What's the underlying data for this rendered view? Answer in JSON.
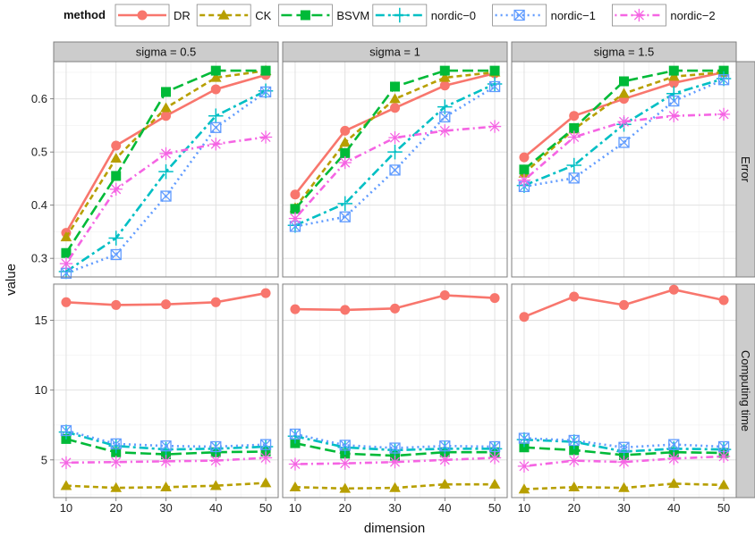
{
  "chart_data": {
    "type": "line",
    "xlabel": "dimension",
    "ylabel": "value",
    "x": [
      10,
      20,
      30,
      40,
      50
    ],
    "legend": {
      "title": "method",
      "position": "top"
    },
    "columns": [
      "sigma = 0.5",
      "sigma = 1",
      "sigma = 1.5"
    ],
    "rows": [
      {
        "label": "Error",
        "ylim": [
          0.265,
          0.67
        ],
        "ticks": [
          "0.3",
          "0.4",
          "0.5",
          "0.6"
        ],
        "tick_values": [
          0.3,
          0.4,
          0.5,
          0.6
        ]
      },
      {
        "label": "Computing time",
        "ylim": [
          2.3,
          17.6
        ],
        "ticks": [
          "5",
          "10",
          "15"
        ],
        "tick_values": [
          5,
          10,
          15
        ]
      }
    ],
    "grid": true,
    "series": [
      {
        "name": "DR",
        "color": "#F8766D",
        "linestyle": "solid",
        "marker": "circle",
        "values": [
          [
            [
              0.348,
              0.512,
              0.568,
              0.618,
              0.645
            ],
            [
              0.42,
              0.54,
              0.583,
              0.625,
              0.648
            ],
            [
              0.49,
              0.568,
              0.6,
              0.63,
              0.65
            ]
          ],
          [
            [
              16.3,
              16.1,
              16.15,
              16.3,
              16.95
            ],
            [
              15.8,
              15.75,
              15.85,
              16.8,
              16.6
            ],
            [
              15.25,
              16.7,
              16.1,
              17.2,
              16.45
            ]
          ]
        ]
      },
      {
        "name": "CK",
        "color": "#B79F00",
        "linestyle": "dashed",
        "marker": "triangle",
        "values": [
          [
            [
              0.34,
              0.488,
              0.583,
              0.64,
              0.653
            ],
            [
              0.395,
              0.518,
              0.6,
              0.64,
              0.65
            ],
            [
              0.46,
              0.543,
              0.61,
              0.642,
              0.65
            ]
          ],
          [
            [
              3.15,
              3.0,
              3.05,
              3.15,
              3.35
            ],
            [
              3.05,
              2.95,
              3.0,
              3.25,
              3.25
            ],
            [
              2.9,
              3.05,
              3.0,
              3.3,
              3.2
            ]
          ]
        ]
      },
      {
        "name": "BSVM",
        "color": "#00BA38",
        "linestyle": "longdash",
        "marker": "square",
        "values": [
          [
            [
              0.31,
              0.455,
              0.613,
              0.653,
              0.653
            ],
            [
              0.393,
              0.498,
              0.623,
              0.653,
              0.653
            ],
            [
              0.467,
              0.545,
              0.633,
              0.653,
              0.653
            ]
          ],
          [
            [
              6.5,
              5.55,
              5.4,
              5.55,
              5.6
            ],
            [
              6.2,
              5.45,
              5.3,
              5.55,
              5.55
            ],
            [
              5.9,
              5.7,
              5.35,
              5.55,
              5.5
            ]
          ]
        ]
      },
      {
        "name": "nordic−0",
        "color": "#00BFC4",
        "linestyle": "twodash",
        "marker": "plus",
        "values": [
          [
            [
              0.275,
              0.338,
              0.463,
              0.568,
              0.615
            ],
            [
              0.362,
              0.403,
              0.5,
              0.585,
              0.628
            ],
            [
              0.437,
              0.475,
              0.552,
              0.61,
              0.638
            ]
          ],
          [
            [
              7.0,
              6.0,
              5.75,
              5.8,
              5.95
            ],
            [
              6.7,
              5.9,
              5.7,
              5.8,
              5.8
            ],
            [
              6.45,
              6.3,
              5.6,
              5.8,
              5.75
            ]
          ]
        ]
      },
      {
        "name": "nordic−1",
        "color": "#619CFF",
        "linestyle": "dotted",
        "marker": "squarex",
        "values": [
          [
            [
              0.272,
              0.307,
              0.417,
              0.546,
              0.613
            ],
            [
              0.36,
              0.378,
              0.466,
              0.566,
              0.623
            ],
            [
              0.435,
              0.451,
              0.518,
              0.596,
              0.636
            ]
          ],
          [
            [
              7.1,
              6.15,
              6.0,
              5.95,
              6.1
            ],
            [
              6.85,
              6.05,
              5.85,
              6.0,
              5.95
            ],
            [
              6.55,
              6.4,
              5.9,
              6.1,
              5.95
            ]
          ]
        ]
      },
      {
        "name": "nordic−2",
        "color": "#F564E3",
        "linestyle": "dotdash",
        "marker": "asterisk",
        "values": [
          [
            [
              0.29,
              0.43,
              0.497,
              0.515,
              0.528
            ],
            [
              0.375,
              0.48,
              0.527,
              0.54,
              0.548
            ],
            [
              0.447,
              0.528,
              0.557,
              0.568,
              0.571
            ]
          ],
          [
            [
              4.8,
              4.85,
              4.9,
              4.95,
              5.15
            ],
            [
              4.7,
              4.75,
              4.85,
              5.0,
              5.15
            ],
            [
              4.55,
              4.95,
              4.85,
              5.1,
              5.25
            ]
          ]
        ]
      }
    ]
  }
}
